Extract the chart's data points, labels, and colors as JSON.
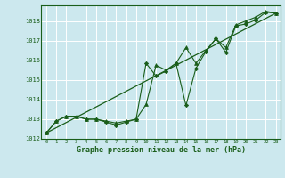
{
  "title": "Graphe pression niveau de la mer (hPa)",
  "bg_color": "#cce8ee",
  "grid_color": "#ffffff",
  "line_color": "#1a5e1a",
  "marker_color": "#1a5e1a",
  "xlim": [
    -0.5,
    23.5
  ],
  "ylim": [
    1012,
    1018.8
  ],
  "xticks": [
    0,
    1,
    2,
    3,
    4,
    5,
    6,
    7,
    8,
    9,
    10,
    11,
    12,
    13,
    14,
    15,
    16,
    17,
    18,
    19,
    20,
    21,
    22,
    23
  ],
  "yticks": [
    1012,
    1013,
    1014,
    1015,
    1016,
    1017,
    1018
  ],
  "series1_x": [
    0,
    1,
    2,
    3,
    4,
    5,
    6,
    7,
    8,
    9,
    10,
    11,
    12,
    13,
    14,
    15,
    16,
    17,
    18,
    19,
    20,
    21,
    22,
    23
  ],
  "series1_y": [
    1012.3,
    1012.9,
    1013.15,
    1013.15,
    1013.0,
    1013.0,
    1012.9,
    1012.8,
    1012.9,
    1013.0,
    1013.75,
    1015.75,
    1015.5,
    1015.85,
    1016.65,
    1015.85,
    1016.5,
    1017.1,
    1016.65,
    1017.8,
    1018.0,
    1018.2,
    1018.5,
    1018.4
  ],
  "series2_x": [
    0,
    1,
    2,
    3,
    4,
    5,
    6,
    7,
    8,
    9,
    10,
    11,
    12,
    13,
    14,
    15,
    16,
    17,
    18,
    19,
    20,
    21,
    22,
    23
  ],
  "series2_y": [
    1012.3,
    1012.9,
    1013.15,
    1013.15,
    1013.0,
    1013.0,
    1012.85,
    1012.7,
    1012.85,
    1013.0,
    1015.85,
    1015.2,
    1015.45,
    1015.85,
    1013.7,
    1015.6,
    1016.45,
    1017.1,
    1016.4,
    1017.75,
    1017.85,
    1018.05,
    1018.45,
    1018.4
  ],
  "trend_x": [
    0,
    23
  ],
  "trend_y": [
    1012.3,
    1018.4
  ]
}
